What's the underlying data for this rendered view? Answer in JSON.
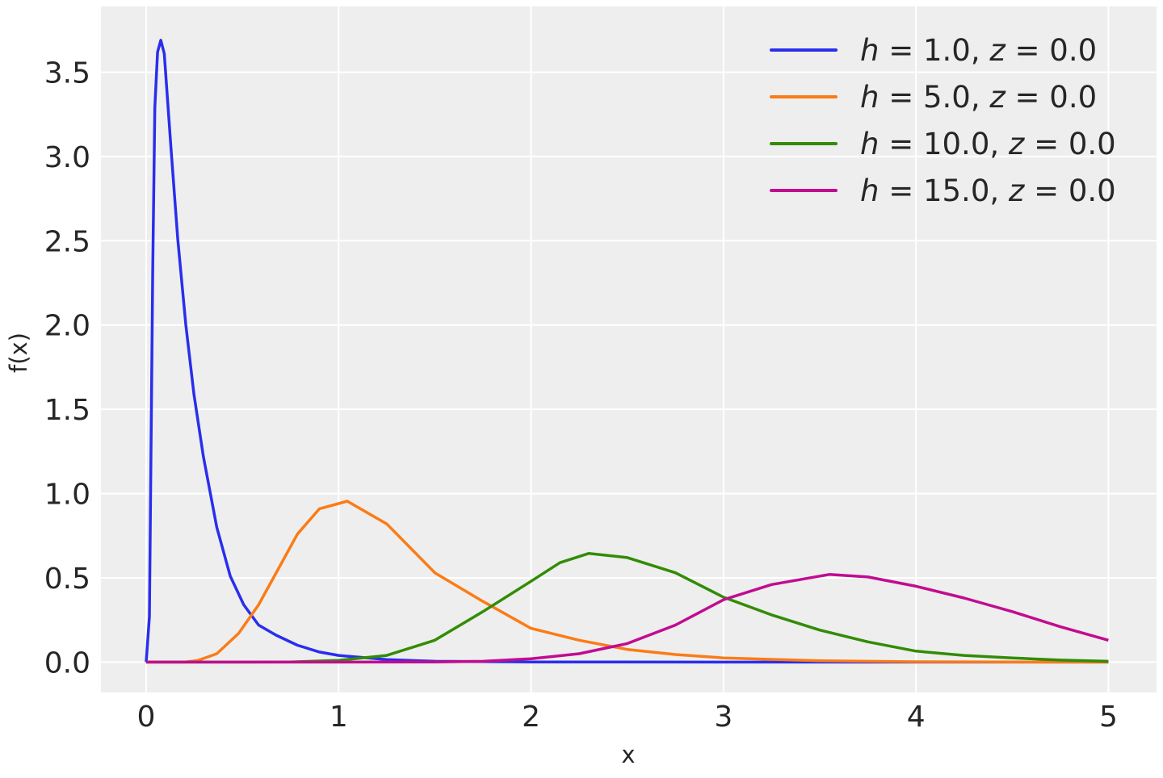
{
  "chart_data": {
    "type": "line",
    "title": "",
    "xlabel": "x",
    "ylabel": "f(x)",
    "xlim": [
      -0.235,
      5.25
    ],
    "ylim": [
      -0.18,
      3.89
    ],
    "xticks": [
      0,
      1,
      2,
      3,
      4,
      5
    ],
    "xtick_labels": [
      "0",
      "1",
      "2",
      "3",
      "4",
      "5"
    ],
    "yticks": [
      0,
      0.5,
      1,
      1.5,
      2,
      2.5,
      3,
      3.5
    ],
    "ytick_labels": [
      "0.0",
      "0.5",
      "1.0",
      "1.5",
      "2.0",
      "2.5",
      "3.0",
      "3.5"
    ],
    "grid": true,
    "legend_position": "top-right",
    "background": "#eeeeee",
    "series": [
      {
        "name": "h = 1.0, z = 0.0",
        "color": "#2a2eec",
        "x": [
          0,
          0.017,
          0.034,
          0.045,
          0.059,
          0.076,
          0.094,
          0.129,
          0.164,
          0.206,
          0.248,
          0.297,
          0.367,
          0.437,
          0.507,
          0.584,
          0.675,
          0.786,
          0.9,
          1.0,
          1.25,
          1.5,
          2.0,
          3.0,
          4.0,
          5.0
        ],
        "y": [
          0,
          0.27,
          2.32,
          3.29,
          3.62,
          3.69,
          3.61,
          3.05,
          2.51,
          2.0,
          1.59,
          1.22,
          0.8,
          0.51,
          0.34,
          0.22,
          0.16,
          0.1,
          0.06,
          0.04,
          0.015,
          0.005,
          0.001,
          0,
          0,
          0
        ]
      },
      {
        "name": "h = 5.0, z = 0.0",
        "color": "#fa7c17",
        "x": [
          0,
          0.2,
          0.27,
          0.367,
          0.48,
          0.584,
          0.69,
          0.786,
          0.9,
          1.045,
          1.25,
          1.5,
          1.75,
          2.0,
          2.25,
          2.5,
          2.75,
          3.0,
          3.5,
          4.0,
          4.5,
          5.0
        ],
        "y": [
          0,
          0.0,
          0.01,
          0.05,
          0.17,
          0.34,
          0.56,
          0.76,
          0.91,
          0.955,
          0.82,
          0.53,
          0.36,
          0.2,
          0.13,
          0.075,
          0.045,
          0.025,
          0.008,
          0.002,
          0.001,
          0
        ]
      },
      {
        "name": "h = 10.0, z = 0.0",
        "color": "#328c06",
        "x": [
          0,
          0.5,
          0.75,
          1.0,
          1.25,
          1.5,
          1.75,
          2.0,
          2.15,
          2.3,
          2.5,
          2.75,
          3.0,
          3.25,
          3.5,
          3.75,
          4.0,
          4.25,
          4.5,
          4.75,
          5.0
        ],
        "y": [
          0,
          0,
          0.001,
          0.01,
          0.04,
          0.13,
          0.3,
          0.48,
          0.59,
          0.645,
          0.62,
          0.53,
          0.385,
          0.28,
          0.19,
          0.12,
          0.065,
          0.04,
          0.025,
          0.012,
          0.005
        ]
      },
      {
        "name": "h = 15.0, z = 0.0",
        "color": "#c10c90",
        "x": [
          0,
          1.0,
          1.5,
          1.75,
          2.0,
          2.25,
          2.5,
          2.75,
          3.0,
          3.25,
          3.55,
          3.75,
          4.0,
          4.25,
          4.5,
          4.75,
          5.0
        ],
        "y": [
          0,
          0,
          0.001,
          0.005,
          0.02,
          0.05,
          0.11,
          0.22,
          0.37,
          0.46,
          0.52,
          0.505,
          0.45,
          0.38,
          0.3,
          0.21,
          0.13
        ]
      }
    ]
  }
}
